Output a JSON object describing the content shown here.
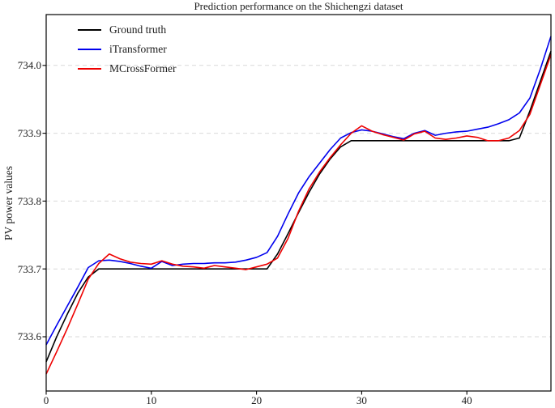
{
  "figure": {
    "background": "#ffffff",
    "spine_color": "#000000",
    "grid_color": "#d9d9d9"
  },
  "chart_data": {
    "type": "line",
    "title": "Prediction performance on the Shichengzi dataset",
    "xlabel": "",
    "ylabel": "PV power values",
    "xlim": [
      0,
      48
    ],
    "ylim": [
      733.52,
      734.075
    ],
    "grid": {
      "horizontal": true,
      "vertical": false,
      "style": "dashed"
    },
    "legend": {
      "position": "upper-left",
      "frame": false
    },
    "x_ticks": {
      "values": [
        0,
        10,
        20,
        30,
        40
      ],
      "labels": [
        "0",
        "10",
        "20",
        "30",
        "40"
      ]
    },
    "y_ticks": {
      "values": [
        733.6,
        733.7,
        733.8,
        733.9,
        734.0
      ],
      "labels": [
        "733.6",
        "733.7",
        "733.8",
        "733.9",
        "734.0"
      ]
    },
    "x": [
      0,
      1,
      2,
      3,
      4,
      5,
      6,
      7,
      8,
      9,
      10,
      11,
      12,
      13,
      14,
      15,
      16,
      17,
      18,
      19,
      20,
      21,
      22,
      23,
      24,
      25,
      26,
      27,
      28,
      29,
      30,
      31,
      32,
      33,
      34,
      35,
      36,
      37,
      38,
      39,
      40,
      41,
      42,
      43,
      44,
      45,
      46,
      47,
      48
    ],
    "series": [
      {
        "name": "Ground truth",
        "color": "#000000",
        "values": [
          733.563,
          733.6,
          733.633,
          733.664,
          733.688,
          733.7,
          733.7,
          733.7,
          733.7,
          733.7,
          733.7,
          733.7,
          733.7,
          733.7,
          733.7,
          733.7,
          733.7,
          733.7,
          733.7,
          733.7,
          733.7,
          733.7,
          733.722,
          733.752,
          733.783,
          733.813,
          733.84,
          733.862,
          733.88,
          733.889,
          733.889,
          733.889,
          733.889,
          733.889,
          733.889,
          733.889,
          733.889,
          733.889,
          733.889,
          733.889,
          733.889,
          733.889,
          733.889,
          733.889,
          733.889,
          733.893,
          733.933,
          733.977,
          734.021
        ]
      },
      {
        "name": "iTransformer",
        "color": "#0000ee",
        "values": [
          733.588,
          733.617,
          733.645,
          733.673,
          733.702,
          733.712,
          733.713,
          733.711,
          733.708,
          733.704,
          733.701,
          733.711,
          733.705,
          733.707,
          733.708,
          733.708,
          733.709,
          733.709,
          733.71,
          733.713,
          733.717,
          733.724,
          733.748,
          733.781,
          733.812,
          733.836,
          733.856,
          733.876,
          733.893,
          733.901,
          733.905,
          733.903,
          733.899,
          733.895,
          733.892,
          733.9,
          733.904,
          733.897,
          733.9,
          733.902,
          733.903,
          733.906,
          733.909,
          733.914,
          733.92,
          733.93,
          733.952,
          733.995,
          734.043
        ]
      },
      {
        "name": "MCrossFormer",
        "color": "#ee0000",
        "values": [
          733.545,
          733.578,
          733.612,
          733.648,
          733.685,
          733.708,
          733.722,
          733.715,
          733.71,
          733.708,
          733.707,
          733.712,
          733.707,
          733.704,
          733.703,
          733.701,
          733.705,
          733.703,
          733.701,
          733.699,
          733.703,
          733.707,
          733.716,
          733.745,
          733.785,
          733.818,
          733.843,
          733.864,
          733.883,
          733.9,
          733.911,
          733.903,
          733.898,
          733.894,
          733.89,
          733.899,
          733.903,
          733.893,
          733.891,
          733.893,
          733.896,
          733.894,
          733.889,
          733.889,
          733.893,
          733.904,
          733.928,
          733.972,
          734.016
        ]
      }
    ]
  }
}
